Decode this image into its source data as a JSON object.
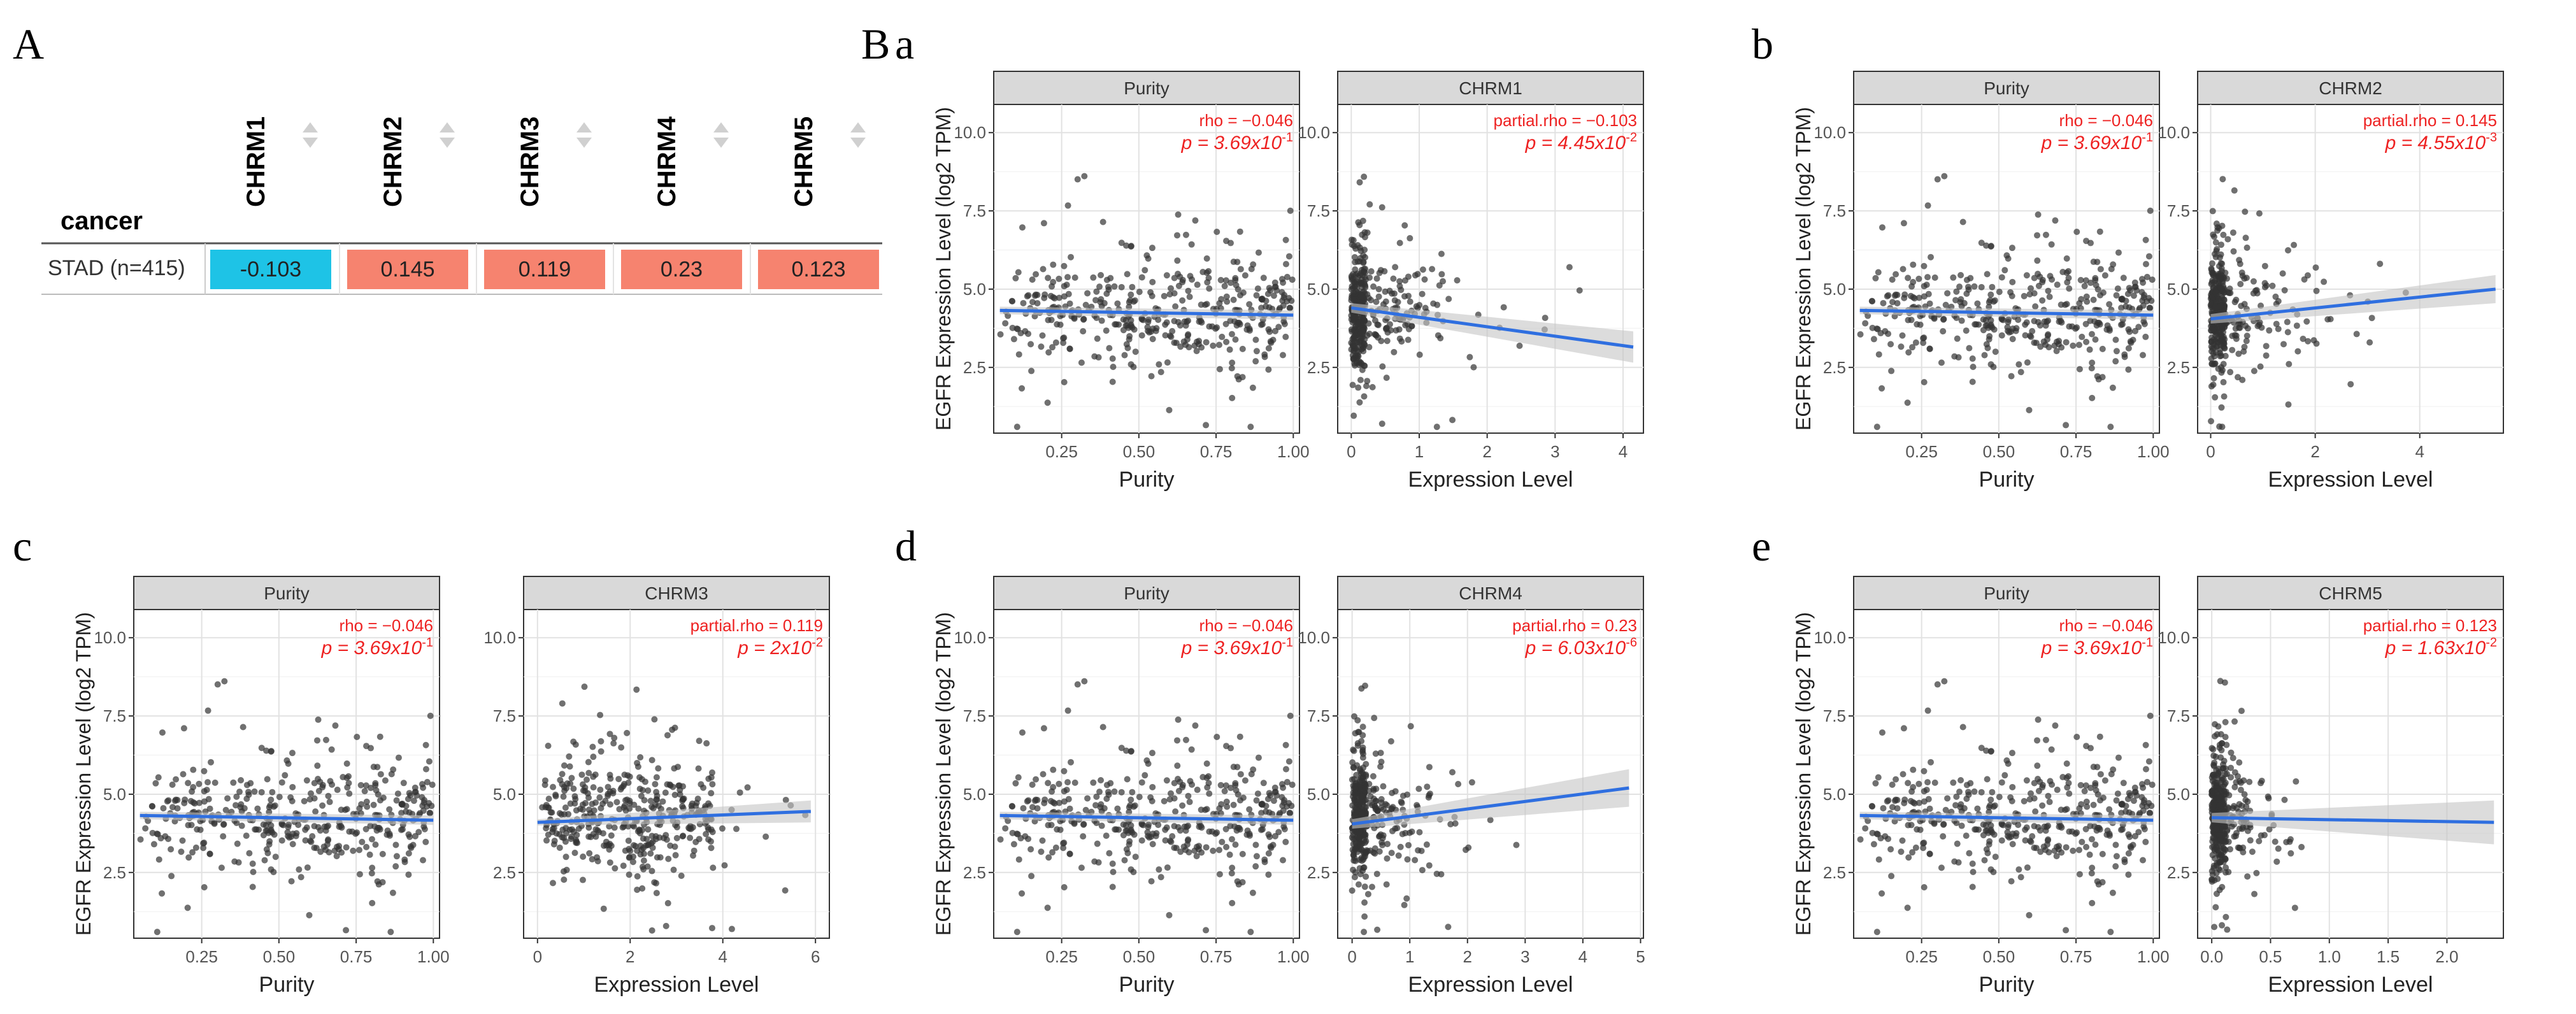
{
  "figure": {
    "panel_labels": {
      "A": "A",
      "B": "B",
      "a": "a",
      "b": "b",
      "c": "c",
      "d": "d",
      "e": "e"
    }
  },
  "heatmap": {
    "row_header": "cancer",
    "columns": [
      "CHRM1",
      "CHRM2",
      "CHRM3",
      "CHRM4",
      "CHRM5"
    ],
    "row_label": "STAD (n=415)",
    "values": [
      "-0.103",
      "0.145",
      "0.119",
      "0.23",
      "0.123"
    ],
    "colors": {
      "negative": "#1ec3e6",
      "positive": "#f6836f"
    }
  },
  "common": {
    "ylabel": "EGFR Expression Level (log2 TPM)",
    "purity_xlabel": "Purity",
    "expr_xlabel": "Expression Level",
    "purity_strip": "Purity",
    "purity_rho": "rho = −0.046",
    "purity_p_base": "p = 3.69x10",
    "purity_p_exp": "-1",
    "colors": {
      "points": "#333333",
      "line": "#2f6fe0",
      "band": "#c4c4c4",
      "annot": "#ee2222",
      "strip": "#d9d9d9"
    }
  },
  "chart_data": [
    {
      "id": "purity",
      "type": "scatter",
      "title": "Purity",
      "xlabel": "Purity",
      "ylabel": "EGFR Expression Level (log2 TPM)",
      "xlim": [
        0.03,
        1.02
      ],
      "ylim": [
        0.4,
        10.9
      ],
      "xticks": [
        0.25,
        0.5,
        0.75,
        1.0
      ],
      "xtick_labels": [
        "0.25",
        "0.50",
        "0.75",
        "1.00"
      ],
      "yticks": [
        2.5,
        5.0,
        7.5,
        10.0
      ],
      "ytick_labels": [
        "2.5",
        "5.0",
        "7.5",
        "10.0"
      ],
      "fit": {
        "x": [
          0.05,
          1.0
        ],
        "y": [
          4.32,
          4.17
        ]
      },
      "annotation": {
        "stat": "rho = −0.046",
        "p_base": "p = 3.69x10",
        "p_exp": "-1"
      },
      "n_points": 415
    },
    {
      "id": "chrm1",
      "type": "scatter",
      "title": "CHRM1",
      "xlabel": "Expression Level",
      "xlim": [
        -0.2,
        4.3
      ],
      "ylim": [
        0.4,
        10.9
      ],
      "xticks": [
        0,
        1,
        2,
        3,
        4
      ],
      "xtick_labels": [
        "0",
        "1",
        "2",
        "3",
        "4"
      ],
      "yticks": [
        2.5,
        5.0,
        7.5,
        10.0
      ],
      "ytick_labels": [
        "2.5",
        "5.0",
        "7.5",
        "10.0"
      ],
      "fit": {
        "x": [
          0,
          4.15
        ],
        "y": [
          4.4,
          3.15
        ]
      },
      "band": [
        0.15,
        0.5
      ],
      "annotation": {
        "stat": "partial.rho = −0.103",
        "p_base": "p = 4.45x10",
        "p_exp": "-2"
      },
      "n_points": 415
    },
    {
      "id": "chrm2",
      "type": "scatter",
      "title": "CHRM2",
      "xlabel": "Expression Level",
      "xlim": [
        -0.25,
        5.6
      ],
      "ylim": [
        0.4,
        10.9
      ],
      "xticks": [
        0,
        2,
        4
      ],
      "xtick_labels": [
        "0",
        "2",
        "4"
      ],
      "yticks": [
        2.5,
        5.0,
        7.5,
        10.0
      ],
      "ytick_labels": [
        "2.5",
        "5.0",
        "7.5",
        "10.0"
      ],
      "fit": {
        "x": [
          0,
          5.45
        ],
        "y": [
          4.05,
          5.0
        ]
      },
      "band": [
        0.15,
        0.45
      ],
      "annotation": {
        "stat": "partial.rho = 0.145",
        "p_base": "p = 4.55x10",
        "p_exp": "-3"
      },
      "n_points": 415
    },
    {
      "id": "chrm3",
      "type": "scatter",
      "title": "CHRM3",
      "xlabel": "Expression Level",
      "xlim": [
        -0.3,
        6.3
      ],
      "ylim": [
        0.4,
        10.9
      ],
      "xticks": [
        0,
        2,
        4,
        6
      ],
      "xtick_labels": [
        "0",
        "2",
        "4",
        "6"
      ],
      "yticks": [
        2.5,
        5.0,
        7.5,
        10.0
      ],
      "ytick_labels": [
        "2.5",
        "5.0",
        "7.5",
        "10.0"
      ],
      "fit": {
        "x": [
          0,
          5.9
        ],
        "y": [
          4.1,
          4.45
        ]
      },
      "band": [
        0.1,
        0.35
      ],
      "annotation": {
        "stat": "partial.rho = 0.119",
        "p_base": "p = 2x10",
        "p_exp": "-2"
      },
      "n_points": 415
    },
    {
      "id": "chrm4",
      "type": "scatter",
      "title": "CHRM4",
      "xlabel": "Expression Level",
      "xlim": [
        -0.25,
        5.05
      ],
      "ylim": [
        0.4,
        10.9
      ],
      "xticks": [
        0,
        1,
        2,
        3,
        4,
        5
      ],
      "xtick_labels": [
        "0",
        "1",
        "2",
        "3",
        "4",
        "5"
      ],
      "yticks": [
        2.5,
        5.0,
        7.5,
        10.0
      ],
      "ytick_labels": [
        "2.5",
        "5.0",
        "7.5",
        "10.0"
      ],
      "fit": {
        "x": [
          0,
          4.8
        ],
        "y": [
          4.05,
          5.2
        ]
      },
      "band": [
        0.15,
        0.6
      ],
      "annotation": {
        "stat": "partial.rho = 0.23",
        "p_base": "p = 6.03x10",
        "p_exp": "-6"
      },
      "n_points": 415
    },
    {
      "id": "chrm5",
      "type": "scatter",
      "title": "CHRM5",
      "xlabel": "Expression Level",
      "xlim": [
        -0.12,
        2.48
      ],
      "ylim": [
        0.4,
        10.9
      ],
      "xticks": [
        0,
        0.5,
        1.0,
        1.5,
        2.0
      ],
      "xtick_labels": [
        "0.0",
        "0.5",
        "1.0",
        "1.5",
        "2.0"
      ],
      "yticks": [
        2.5,
        5.0,
        7.5,
        10.0
      ],
      "ytick_labels": [
        "2.5",
        "5.0",
        "7.5",
        "10.0"
      ],
      "fit": {
        "x": [
          0,
          2.4
        ],
        "y": [
          4.25,
          4.1
        ]
      },
      "band": [
        0.15,
        0.7
      ],
      "annotation": {
        "stat": "partial.rho = 0.123",
        "p_base": "p = 1.63x10",
        "p_exp": "-2"
      },
      "n_points": 415
    }
  ]
}
